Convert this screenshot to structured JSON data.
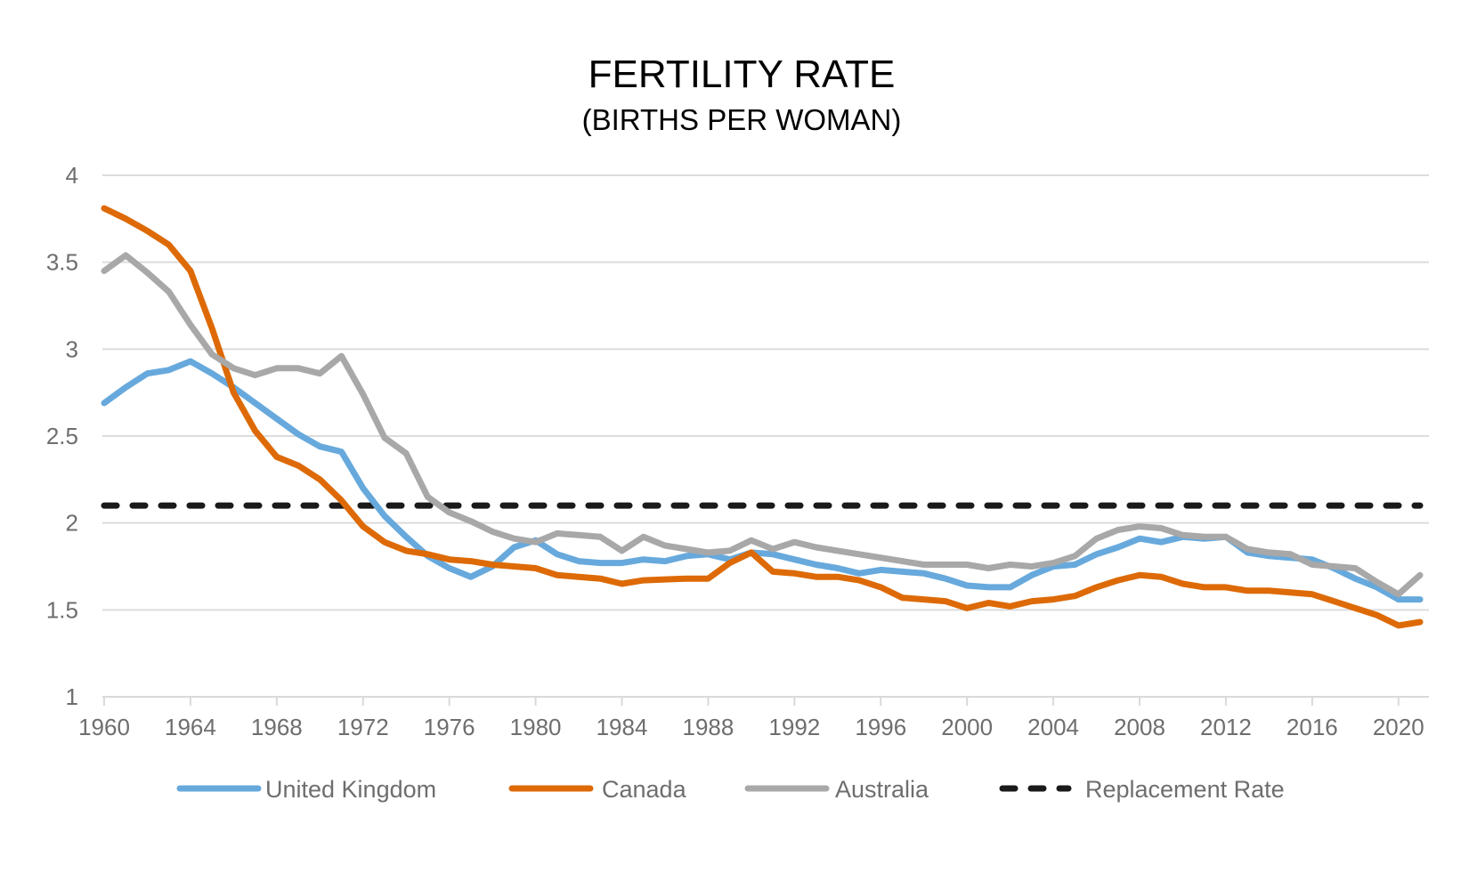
{
  "chart_data": {
    "type": "line",
    "title": "FERTILITY RATE",
    "subtitle": "(BIRTHS PER WOMAN)",
    "xlabel": "",
    "ylabel": "",
    "x": [
      1960,
      1961,
      1962,
      1963,
      1964,
      1965,
      1966,
      1967,
      1968,
      1969,
      1970,
      1971,
      1972,
      1973,
      1974,
      1975,
      1976,
      1977,
      1978,
      1979,
      1980,
      1981,
      1982,
      1983,
      1984,
      1985,
      1986,
      1987,
      1988,
      1989,
      1990,
      1991,
      1992,
      1993,
      1994,
      1995,
      1996,
      1997,
      1998,
      1999,
      2000,
      2001,
      2002,
      2003,
      2004,
      2005,
      2006,
      2007,
      2008,
      2009,
      2010,
      2011,
      2012,
      2013,
      2014,
      2015,
      2016,
      2017,
      2018,
      2019,
      2020,
      2021
    ],
    "xlim": [
      1960,
      2021
    ],
    "ylim": [
      1,
      4
    ],
    "x_ticks": [
      "1960",
      "1964",
      "1968",
      "1972",
      "1976",
      "1980",
      "1984",
      "1988",
      "1992",
      "1996",
      "2000",
      "2004",
      "2008",
      "2012",
      "2016",
      "2020"
    ],
    "y_ticks": [
      "1",
      "1.5",
      "2",
      "2.5",
      "3",
      "3.5",
      "4"
    ],
    "grid": "horizontal",
    "legend_position": "bottom",
    "series": [
      {
        "name": "United Kingdom",
        "color": "#67a9dc",
        "style": "solid",
        "values": [
          2.69,
          2.78,
          2.86,
          2.88,
          2.93,
          2.86,
          2.78,
          2.69,
          2.6,
          2.51,
          2.44,
          2.41,
          2.2,
          2.04,
          1.92,
          1.81,
          1.74,
          1.69,
          1.75,
          1.86,
          1.9,
          1.82,
          1.78,
          1.77,
          1.77,
          1.79,
          1.78,
          1.81,
          1.82,
          1.79,
          1.83,
          1.82,
          1.79,
          1.76,
          1.74,
          1.71,
          1.73,
          1.72,
          1.71,
          1.68,
          1.64,
          1.63,
          1.63,
          1.7,
          1.75,
          1.76,
          1.82,
          1.86,
          1.91,
          1.89,
          1.92,
          1.91,
          1.92,
          1.83,
          1.81,
          1.8,
          1.79,
          1.74,
          1.68,
          1.63,
          1.56,
          1.56
        ]
      },
      {
        "name": "Canada",
        "color": "#dd6a06",
        "style": "solid",
        "values": [
          3.81,
          3.75,
          3.68,
          3.6,
          3.45,
          3.12,
          2.75,
          2.53,
          2.38,
          2.33,
          2.25,
          2.13,
          1.98,
          1.89,
          1.84,
          1.82,
          1.79,
          1.78,
          1.76,
          1.75,
          1.74,
          1.7,
          1.69,
          1.68,
          1.65,
          1.67,
          1.675,
          1.68,
          1.68,
          1.77,
          1.83,
          1.72,
          1.71,
          1.69,
          1.69,
          1.67,
          1.63,
          1.57,
          1.56,
          1.55,
          1.51,
          1.54,
          1.52,
          1.55,
          1.56,
          1.58,
          1.63,
          1.67,
          1.7,
          1.69,
          1.65,
          1.63,
          1.63,
          1.61,
          1.61,
          1.6,
          1.59,
          1.55,
          1.51,
          1.47,
          1.41,
          1.43
        ]
      },
      {
        "name": "Australia",
        "color": "#a8a8a8",
        "style": "solid",
        "values": [
          3.45,
          3.54,
          3.44,
          3.33,
          3.14,
          2.97,
          2.89,
          2.85,
          2.89,
          2.89,
          2.86,
          2.96,
          2.74,
          2.49,
          2.4,
          2.15,
          2.06,
          2.01,
          1.95,
          1.91,
          1.89,
          1.94,
          1.93,
          1.92,
          1.84,
          1.92,
          1.87,
          1.85,
          1.83,
          1.84,
          1.9,
          1.85,
          1.89,
          1.86,
          1.84,
          1.82,
          1.8,
          1.78,
          1.76,
          1.76,
          1.76,
          1.74,
          1.76,
          1.75,
          1.77,
          1.81,
          1.91,
          1.96,
          1.98,
          1.97,
          1.93,
          1.92,
          1.92,
          1.85,
          1.83,
          1.82,
          1.76,
          1.75,
          1.74,
          1.66,
          1.59,
          1.7
        ]
      },
      {
        "name": "Replacement Rate",
        "color": "#1a1a1a",
        "style": "dashed",
        "values": [
          2.1,
          2.1,
          2.1,
          2.1,
          2.1,
          2.1,
          2.1,
          2.1,
          2.1,
          2.1,
          2.1,
          2.1,
          2.1,
          2.1,
          2.1,
          2.1,
          2.1,
          2.1,
          2.1,
          2.1,
          2.1,
          2.1,
          2.1,
          2.1,
          2.1,
          2.1,
          2.1,
          2.1,
          2.1,
          2.1,
          2.1,
          2.1,
          2.1,
          2.1,
          2.1,
          2.1,
          2.1,
          2.1,
          2.1,
          2.1,
          2.1,
          2.1,
          2.1,
          2.1,
          2.1,
          2.1,
          2.1,
          2.1,
          2.1,
          2.1,
          2.1,
          2.1,
          2.1,
          2.1,
          2.1,
          2.1,
          2.1,
          2.1,
          2.1,
          2.1,
          2.1,
          2.1
        ]
      }
    ]
  }
}
